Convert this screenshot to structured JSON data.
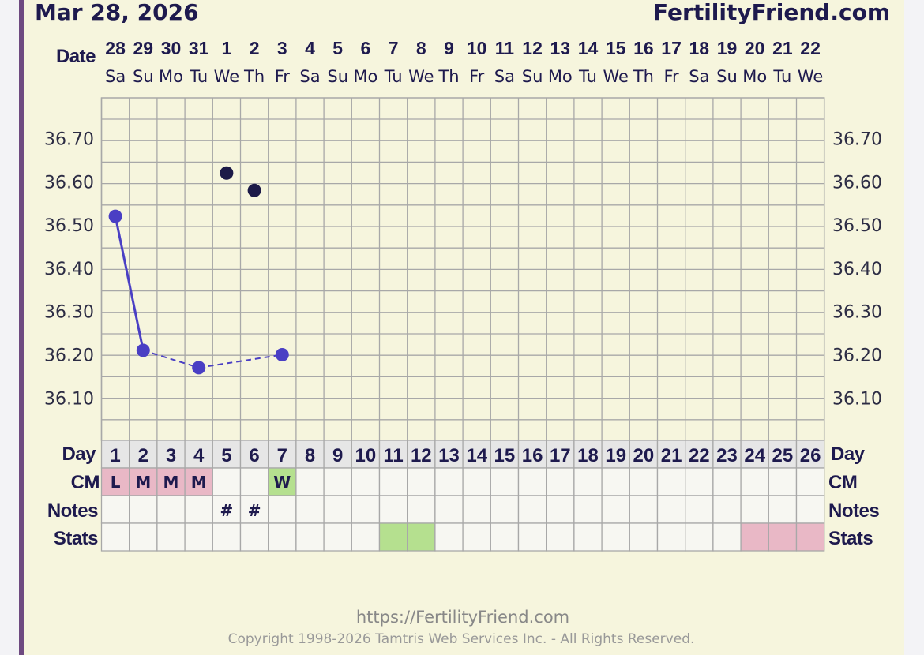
{
  "header": {
    "date": "Mar 28, 2026",
    "site": "FertilityFriend.com"
  },
  "labels": {
    "date": "Date",
    "day": "Day",
    "cm": "CM",
    "notes": "Notes",
    "stats": "Stats"
  },
  "chart_data": {
    "type": "line",
    "ylim": [
      36.0,
      36.8
    ],
    "yticks": [
      "36.70",
      "36.60",
      "36.50",
      "36.40",
      "36.30",
      "36.20",
      "36.10"
    ],
    "dates": [
      "28",
      "29",
      "30",
      "31",
      "1",
      "2",
      "3",
      "4",
      "5",
      "6",
      "7",
      "8",
      "9",
      "10",
      "11",
      "12",
      "13",
      "14",
      "15",
      "16",
      "17",
      "18",
      "19",
      "20",
      "21",
      "22"
    ],
    "weekdays": [
      "Sa",
      "Su",
      "Mo",
      "Tu",
      "We",
      "Th",
      "Fr",
      "Sa",
      "Su",
      "Mo",
      "Tu",
      "We",
      "Th",
      "Fr",
      "Sa",
      "Su",
      "Mo",
      "Tu",
      "We",
      "Th",
      "Fr",
      "Sa",
      "Su",
      "Mo",
      "Tu",
      "We"
    ],
    "cycle_days": [
      "1",
      "2",
      "3",
      "4",
      "5",
      "6",
      "7",
      "8",
      "9",
      "10",
      "11",
      "12",
      "13",
      "14",
      "15",
      "16",
      "17",
      "18",
      "19",
      "20",
      "21",
      "22",
      "23",
      "24",
      "25",
      "26"
    ],
    "temps": [
      {
        "day": 1,
        "temp": 36.52,
        "type": "charted"
      },
      {
        "day": 2,
        "temp": 36.21,
        "type": "charted"
      },
      {
        "day": 4,
        "temp": 36.17,
        "type": "charted"
      },
      {
        "day": 5,
        "temp": 36.62,
        "type": "discarded"
      },
      {
        "day": 6,
        "temp": 36.58,
        "type": "discarded"
      },
      {
        "day": 7,
        "temp": 36.2,
        "type": "charted"
      }
    ],
    "connections": [
      {
        "from": 1,
        "to": 2,
        "style": "solid"
      },
      {
        "from": 2,
        "to": 4,
        "style": "dashed"
      },
      {
        "from": 4,
        "to": 7,
        "style": "dashed"
      }
    ],
    "cm": [
      {
        "day": 1,
        "value": "L",
        "color": "#e9b8c6"
      },
      {
        "day": 2,
        "value": "M",
        "color": "#e9b8c6"
      },
      {
        "day": 3,
        "value": "M",
        "color": "#e9b8c6"
      },
      {
        "day": 4,
        "value": "M",
        "color": "#e9b8c6"
      },
      {
        "day": 7,
        "value": "W",
        "color": "#b5e08f"
      }
    ],
    "notes": [
      {
        "day": 5,
        "value": "#"
      },
      {
        "day": 6,
        "value": "#"
      }
    ],
    "stats": [
      {
        "day": 11,
        "color": "#b5e08f"
      },
      {
        "day": 12,
        "color": "#b5e08f"
      },
      {
        "day": 24,
        "color": "#e9b8c6"
      },
      {
        "day": 25,
        "color": "#e9b8c6"
      },
      {
        "day": 26,
        "color": "#e9b8c6"
      }
    ],
    "colors": {
      "charted": "#4a3fc4",
      "discarded": "#1c1a48",
      "grid": "#a8a8a8",
      "cellbg": "#f7f7f2",
      "dayrow": "#e6e6e6"
    }
  },
  "footer": {
    "url": "https://FertilityFriend.com",
    "copyright": "Copyright 1998-2026 Tamtris Web Services Inc. - All Rights Reserved."
  }
}
